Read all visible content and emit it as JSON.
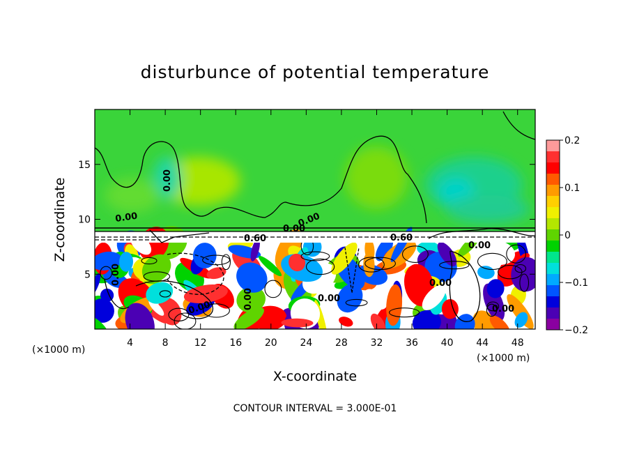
{
  "chart_data": {
    "type": "heatmap",
    "title": "disturbunce of potential temperature",
    "xlabel": "X-coordinate",
    "ylabel": "Z-coordinate",
    "x_unit_left": "(×1000 m)",
    "x_unit_right": "(×1000 m)",
    "xlim": [
      0,
      50
    ],
    "ylim": [
      0,
      20
    ],
    "x_ticks": [
      4,
      8,
      12,
      16,
      20,
      24,
      28,
      32,
      36,
      40,
      44,
      48
    ],
    "y_ticks": [
      5,
      10,
      15
    ],
    "colorbar": {
      "range": [
        -0.2,
        0.2
      ],
      "tick_values": [
        0.2,
        0.1,
        0,
        -0.1,
        -0.2
      ],
      "tick_labels": [
        "0.2",
        "0.1",
        "0",
        "−0.1",
        "−0.2"
      ],
      "colors": [
        "#ff9a9a",
        "#ff3030",
        "#ff0000",
        "#ff5a00",
        "#ff9b00",
        "#ffd000",
        "#f0f000",
        "#b4e600",
        "#5fd400",
        "#00d200",
        "#00e68c",
        "#00e0dc",
        "#00aaff",
        "#0055ff",
        "#0000dc",
        "#4b00b4",
        "#8a00a0"
      ]
    },
    "contour_labels": [
      "0.00",
      "0.00",
      "0.00",
      "0.00",
      "0.60",
      "0.60",
      "0.00",
      "0.00",
      "0.00",
      "0.00",
      "0.00",
      "0.00",
      "0.00"
    ],
    "footnote": "CONTOUR INTERVAL = 3.000E-01"
  },
  "colors": {
    "upper_field": "#3ad43a",
    "warm_patch": "#a8e600",
    "cool_patch": "#1ad08c"
  }
}
